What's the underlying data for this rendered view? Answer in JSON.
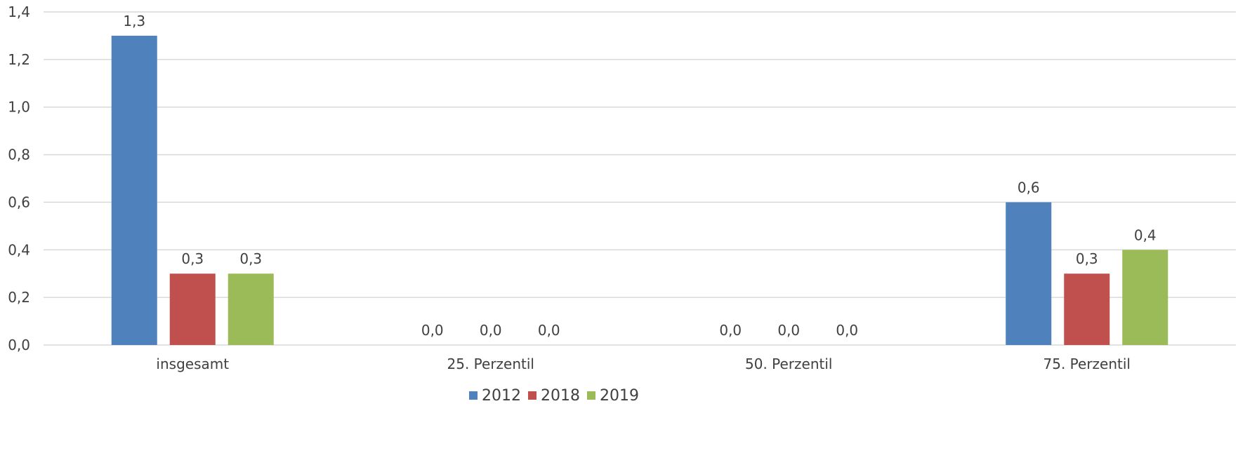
{
  "chart_data": {
    "type": "bar",
    "categories": [
      "insgesamt",
      "25. Perzentil",
      "50. Perzentil",
      "75. Perzentil"
    ],
    "series": [
      {
        "name": "2012",
        "color": "#4f81bd",
        "values": [
          1.3,
          0.0,
          0.0,
          0.6
        ],
        "labels": [
          "1,3",
          "0,0",
          "0,0",
          "0,6"
        ]
      },
      {
        "name": "2018",
        "color": "#c0504d",
        "values": [
          0.3,
          0.0,
          0.0,
          0.3
        ],
        "labels": [
          "0,3",
          "0,0",
          "0,0",
          "0,3"
        ]
      },
      {
        "name": "2019",
        "color": "#9bbb59",
        "values": [
          0.3,
          0.0,
          0.0,
          0.4
        ],
        "labels": [
          "0,3",
          "0,0",
          "0,0",
          "0,4"
        ]
      }
    ],
    "ylim": [
      0,
      1.4
    ],
    "yticks": [
      0,
      0.2,
      0.4,
      0.6,
      0.8,
      1.0,
      1.2,
      1.4
    ],
    "ytick_labels": [
      "0,0",
      "0,2",
      "0,4",
      "0,6",
      "0,8",
      "1,0",
      "1,2",
      "1,4"
    ],
    "title": "",
    "xlabel": "",
    "ylabel": "",
    "grid": "horizontal",
    "legend_position": "bottom-center"
  }
}
